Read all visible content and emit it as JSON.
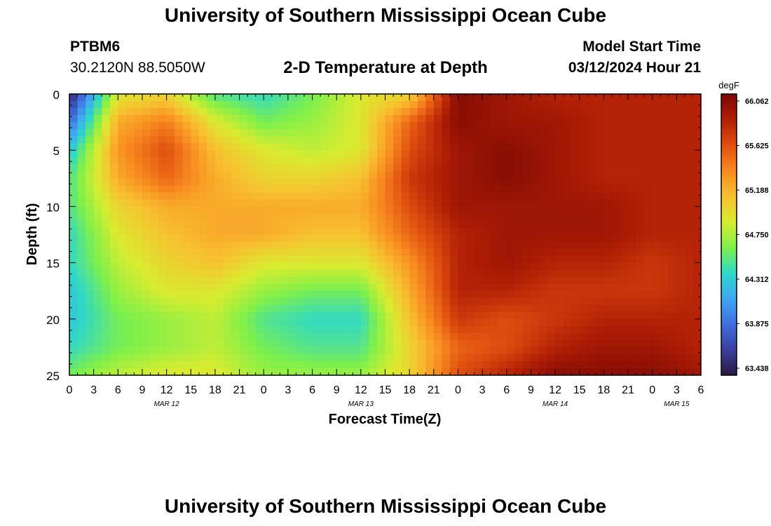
{
  "header": {
    "title": "University of Southern Mississippi Ocean Cube",
    "station": "PTBM6",
    "latlon": "30.2120N  88.5050W",
    "subtitle": "2-D Temperature at Depth",
    "run_label": "Model Start Time",
    "run_value": "03/12/2024 Hour 21"
  },
  "footer": {
    "title": "University of Southern Mississippi Ocean Cube"
  },
  "chart_data": {
    "type": "heatmap",
    "title": "2-D Temperature at Depth",
    "xlabel": "Forecast Time(Z)",
    "ylabel": "Depth (ft)",
    "x_ticks": [
      "0",
      "3",
      "6",
      "9",
      "12",
      "15",
      "18",
      "21",
      "0",
      "3",
      "6",
      "9",
      "12",
      "15",
      "18",
      "21",
      "0",
      "3",
      "6",
      "9",
      "12",
      "15",
      "18",
      "21",
      "0",
      "3",
      "6"
    ],
    "x_range_hours": [
      0,
      78
    ],
    "date_labels": [
      {
        "label": "MAR 12",
        "hour": 12
      },
      {
        "label": "MAR 13",
        "hour": 36
      },
      {
        "label": "MAR 14",
        "hour": 60
      },
      {
        "label": "MAR 15",
        "hour": 75
      }
    ],
    "y_ticks": [
      0,
      5,
      10,
      15,
      20,
      25
    ],
    "ylim": [
      0,
      25
    ],
    "y_inverted": true,
    "colorbar": {
      "unit": "degF",
      "min": 63.438,
      "max": 66.062,
      "tick_labels": [
        "66.062",
        "65.625",
        "65.188",
        "64.750",
        "64.312",
        "63.875",
        "63.438"
      ],
      "colors": [
        "#2a1a40",
        "#3b3fa0",
        "#3f6fe0",
        "#3fa8f0",
        "#2fd8c8",
        "#7ff04a",
        "#d8ec30",
        "#f8c030",
        "#f88a20",
        "#e05010",
        "#b01e05",
        "#7a0804"
      ]
    },
    "time_hours": [
      0,
      6,
      12,
      18,
      24,
      30,
      36,
      42,
      48,
      54,
      60,
      66,
      72,
      78
    ],
    "depth_ft": [
      0,
      2.5,
      5,
      7.5,
      10,
      12.5,
      15,
      17.5,
      20,
      22.5,
      25
    ],
    "temperature_degF": [
      [
        63.5,
        64.9,
        65.0,
        64.5,
        64.4,
        64.6,
        64.9,
        65.0,
        66.0,
        65.9,
        65.8,
        65.8,
        65.8,
        65.8
      ],
      [
        63.9,
        65.2,
        65.4,
        64.9,
        64.6,
        64.7,
        64.9,
        65.5,
        66.0,
        65.9,
        65.9,
        65.8,
        65.8,
        65.8
      ],
      [
        64.3,
        65.3,
        65.6,
        65.1,
        64.9,
        64.8,
        64.9,
        65.6,
        65.9,
        66.0,
        65.9,
        65.8,
        65.8,
        65.8
      ],
      [
        64.5,
        65.2,
        65.5,
        65.2,
        65.0,
        65.0,
        65.1,
        65.7,
        65.9,
        66.0,
        65.9,
        65.8,
        65.8,
        65.8
      ],
      [
        64.5,
        65.0,
        65.2,
        65.2,
        65.2,
        65.2,
        65.2,
        65.6,
        65.9,
        65.9,
        65.9,
        65.9,
        65.8,
        65.8
      ],
      [
        64.4,
        64.9,
        65.1,
        65.2,
        65.2,
        65.1,
        65.1,
        65.5,
        65.8,
        65.9,
        65.9,
        65.9,
        65.8,
        65.8
      ],
      [
        64.4,
        64.8,
        65.0,
        65.1,
        64.9,
        64.9,
        64.9,
        65.3,
        65.8,
        65.9,
        65.8,
        65.8,
        65.7,
        65.8
      ],
      [
        64.3,
        64.7,
        64.9,
        64.9,
        64.7,
        64.6,
        64.6,
        65.2,
        65.8,
        65.8,
        65.7,
        65.7,
        65.7,
        65.8
      ],
      [
        64.3,
        64.6,
        64.7,
        64.8,
        64.5,
        64.4,
        64.4,
        65.1,
        65.7,
        65.6,
        65.7,
        65.8,
        65.8,
        65.8
      ],
      [
        64.4,
        64.6,
        64.7,
        64.8,
        64.6,
        64.5,
        64.5,
        65.0,
        65.5,
        65.6,
        65.8,
        65.9,
        65.9,
        65.8
      ],
      [
        64.6,
        64.8,
        64.9,
        64.9,
        64.7,
        64.7,
        64.7,
        65.0,
        65.6,
        65.8,
        66.0,
        66.0,
        66.0,
        65.9
      ]
    ]
  }
}
